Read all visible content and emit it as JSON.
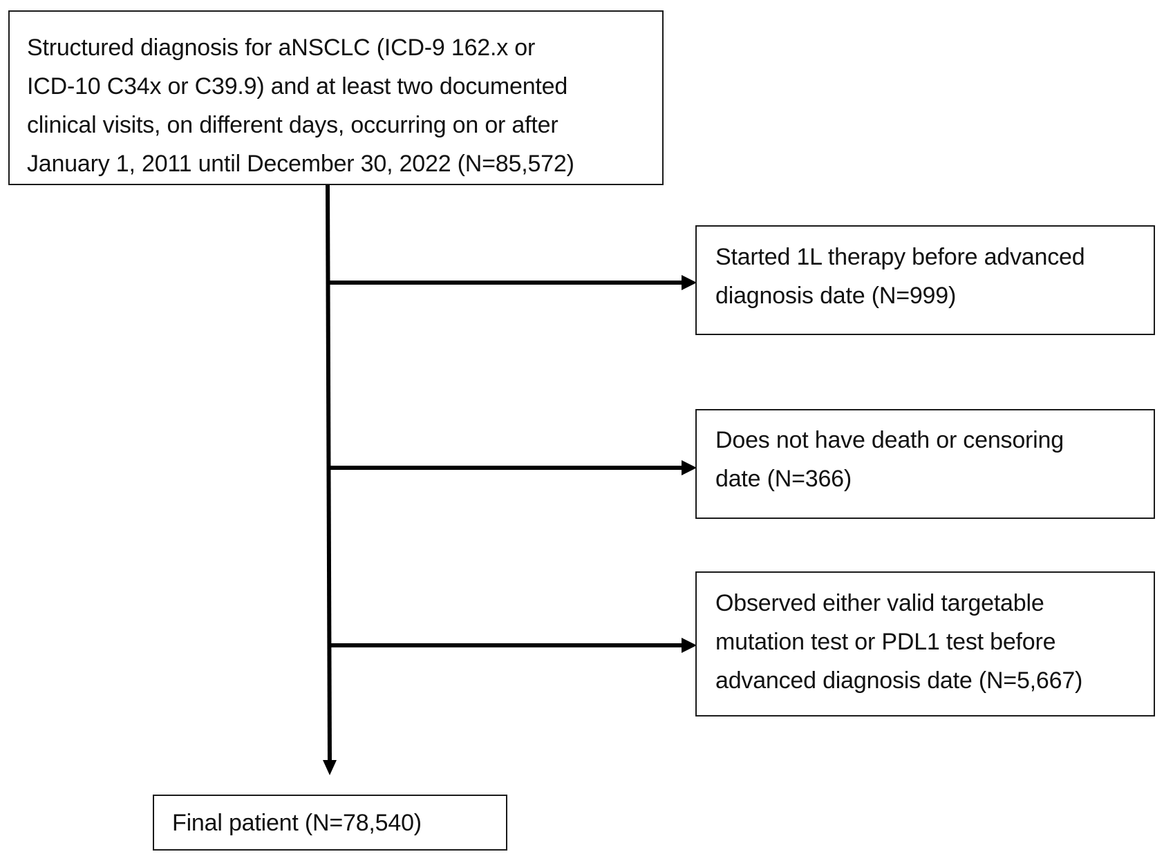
{
  "flowchart": {
    "start_box": {
      "lines": [
        "Structured diagnosis for aNSCLC (ICD-9 162.x or",
        "ICD-10 C34x or C39.9) and at least two documented",
        "clinical visits, on different days, occurring on or after",
        "January 1, 2011 until December 30, 2022 (N=85,572)"
      ]
    },
    "exclusions": [
      {
        "lines": [
          "Started 1L therapy before advanced",
          "diagnosis date (N=999)"
        ]
      },
      {
        "lines": [
          "Does not have death or censoring",
          "date (N=366)"
        ]
      },
      {
        "lines": [
          "Observed either valid targetable",
          "mutation test or PDL1 test before",
          "advanced diagnosis date (N=5,667)"
        ]
      }
    ],
    "final_box": {
      "lines": [
        "Final patient (N=78,540)"
      ]
    }
  },
  "colors": {
    "line": "#000000",
    "border": "#1a1a1a",
    "text": "#111111",
    "background": "#ffffff"
  }
}
